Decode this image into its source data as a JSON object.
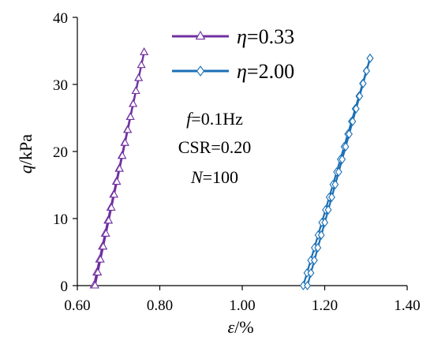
{
  "chart_data": {
    "type": "line",
    "xlabel": {
      "symbol": "ε",
      "unit": "/%"
    },
    "ylabel": {
      "symbol": "q",
      "unit": "/kPa"
    },
    "xlim": [
      0.6,
      1.4
    ],
    "ylim": [
      0,
      40
    ],
    "xticks": [
      "0.60",
      "0.80",
      "1.00",
      "1.20",
      "1.40"
    ],
    "yticks": [
      "0",
      "10",
      "20",
      "30",
      "40"
    ],
    "xtick_values": [
      0.6,
      0.8,
      1.0,
      1.2,
      1.4
    ],
    "ytick_values": [
      0,
      10,
      20,
      30,
      40
    ],
    "grid": false,
    "legend": "top-center",
    "series": [
      {
        "name": {
          "symbol": "η",
          "value": "=0.33"
        },
        "color": "#7030a0",
        "marker": "triangle",
        "loading": {
          "x": [
            0.64,
            0.762
          ],
          "y": [
            0,
            34.8
          ]
        },
        "unloading": {
          "x": [
            0.762,
            0.643
          ],
          "y": [
            34.8,
            0
          ]
        }
      },
      {
        "name": {
          "symbol": "η",
          "value": "=2.00"
        },
        "color": "#1a6fb5",
        "marker": "diamond",
        "loading": {
          "x": [
            1.148,
            1.31
          ],
          "y": [
            0,
            33.9
          ]
        },
        "unloading": {
          "x": [
            1.31,
            1.158
          ],
          "y": [
            33.9,
            0
          ]
        }
      }
    ],
    "annotations": [
      {
        "symbol": "f",
        "rest": "=0.1Hz"
      },
      {
        "symbol": "",
        "rest": "CSR=0.20"
      },
      {
        "symbol": "N",
        "rest": "=100"
      }
    ]
  }
}
